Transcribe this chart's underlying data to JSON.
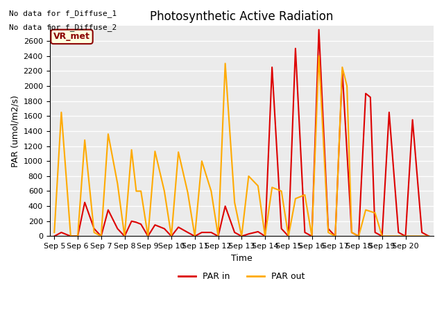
{
  "title": "Photosynthetic Active Radiation",
  "ylabel": "PAR (umol/m2/s)",
  "xlabel": "Time",
  "ylim": [
    0,
    2800
  ],
  "yticks": [
    0,
    200,
    400,
    600,
    800,
    1000,
    1200,
    1400,
    1600,
    1800,
    2000,
    2200,
    2400,
    2600
  ],
  "text_lines": [
    "No data for f_Diffuse_1",
    "No data for f_Diffuse_2"
  ],
  "legend_label_box": "VR_met",
  "legend_entries": [
    "PAR in",
    "PAR out"
  ],
  "line_colors": [
    "#dd0000",
    "#ffaa00"
  ],
  "background_color": "#ebebeb",
  "x_labels": [
    "Sep 5",
    "Sep 6",
    "Sep 7",
    "Sep 8",
    "Sep 9",
    "Sep 10",
    "Sep 11",
    "Sep 12",
    "Sep 13",
    "Sep 14",
    "Sep 15",
    "Sep 16",
    "Sep 17",
    "Sep 18",
    "Sep 19",
    "Sep 20"
  ],
  "par_in_x": [
    0,
    0.3,
    0.7,
    1,
    1.3,
    1.7,
    2,
    2,
    2.3,
    2.7,
    3,
    3,
    3.3,
    3.5,
    3.7,
    4,
    4,
    4.3,
    4.7,
    5,
    5,
    5.3,
    5.7,
    6,
    6,
    6.3,
    6.7,
    7,
    7,
    7.3,
    7.7,
    8,
    8,
    8.3,
    8.7,
    9,
    9,
    9.3,
    9.7,
    10,
    10,
    10.3,
    10.7,
    11,
    11,
    11.3,
    11.7,
    12,
    12,
    12.3,
    12.7,
    13,
    13,
    13.3,
    13.5,
    13.7,
    14,
    14,
    14.3,
    14.7,
    15,
    15,
    15.3,
    15.7,
    16
  ],
  "par_in_y": [
    0,
    50,
    0,
    0,
    450,
    100,
    0,
    0,
    350,
    100,
    0,
    0,
    200,
    185,
    160,
    0,
    0,
    150,
    100,
    0,
    0,
    120,
    50,
    0,
    0,
    50,
    50,
    0,
    0,
    400,
    50,
    0,
    0,
    30,
    60,
    0,
    0,
    2250,
    100,
    0,
    0,
    2500,
    50,
    0,
    0,
    2750,
    100,
    0,
    0,
    2200,
    50,
    0,
    0,
    1900,
    1850,
    50,
    0,
    0,
    1650,
    50,
    0,
    0,
    1550,
    50,
    0
  ],
  "par_out_x": [
    0,
    0.3,
    0.7,
    1,
    1.3,
    1.7,
    2,
    2,
    2.3,
    2.7,
    3,
    3,
    3.3,
    3.5,
    3.7,
    4,
    4,
    4.3,
    4.7,
    5,
    5,
    5.3,
    5.7,
    6,
    6,
    6.3,
    6.7,
    7,
    7,
    7.3,
    7.7,
    8,
    8,
    8.3,
    8.7,
    9,
    9,
    9.3,
    9.7,
    10,
    10,
    10.3,
    10.7,
    11,
    11,
    11.3,
    11.7,
    12,
    12,
    12.3,
    12.5,
    12.7,
    13,
    13,
    13.3,
    13.7,
    14,
    14,
    14.3,
    14.7,
    15,
    15,
    15.3,
    15.7,
    16
  ],
  "par_out_y": [
    50,
    1650,
    0,
    0,
    1280,
    50,
    0,
    0,
    1360,
    700,
    0,
    0,
    1150,
    600,
    600,
    0,
    0,
    1130,
    600,
    0,
    0,
    1120,
    580,
    0,
    0,
    1000,
    600,
    0,
    0,
    2300,
    450,
    0,
    0,
    800,
    670,
    0,
    0,
    650,
    600,
    0,
    0,
    500,
    550,
    0,
    0,
    2400,
    50,
    0,
    0,
    2250,
    2000,
    50,
    0,
    0,
    350,
    310,
    0,
    0,
    0,
    0,
    0,
    0,
    0,
    0,
    0
  ]
}
